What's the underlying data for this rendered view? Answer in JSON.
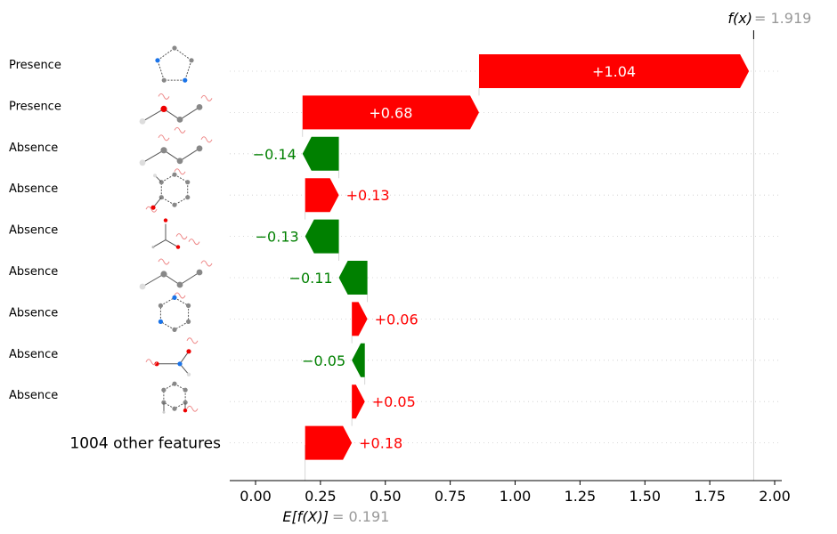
{
  "chart_data": {
    "type": "waterfall",
    "base_value": 0.191,
    "final_value": 1.919,
    "base_label": "E[f(X)]",
    "base_value_text": "= 0.191",
    "final_label": "f(x)",
    "final_value_text": "= 1.919",
    "xlim": [
      -0.1,
      2.03
    ],
    "x_ticks": [
      0,
      0.25,
      0.5,
      0.75,
      1.0,
      1.25,
      1.5,
      1.75,
      2.0
    ],
    "x_tick_labels": [
      "0.00",
      "0.25",
      "0.50",
      "0.75",
      "1.00",
      "1.25",
      "1.50",
      "1.75",
      "2.00"
    ],
    "colors": {
      "positive": "#ff0000",
      "negative": "#008000",
      "text_gray": "#999999"
    },
    "features": [
      {
        "label": "Presence",
        "value": 1.04,
        "value_label": "+1.04",
        "structure": "cyclopentane-ring"
      },
      {
        "label": "Presence",
        "value": 0.68,
        "value_label": "+0.68",
        "structure": "branched-fragment"
      },
      {
        "label": "Absence",
        "value": -0.14,
        "value_label": "−0.14",
        "structure": "branched-fragment"
      },
      {
        "label": "Absence",
        "value": 0.13,
        "value_label": "+0.13",
        "structure": "benzene-ring"
      },
      {
        "label": "Absence",
        "value": -0.13,
        "value_label": "−0.13",
        "structure": "carbonyl-fragment"
      },
      {
        "label": "Absence",
        "value": -0.11,
        "value_label": "−0.11",
        "structure": "branched-fragment"
      },
      {
        "label": "Absence",
        "value": 0.06,
        "value_label": "+0.06",
        "structure": "pyridine-ring"
      },
      {
        "label": "Absence",
        "value": -0.05,
        "value_label": "−0.05",
        "structure": "amine-fragment"
      },
      {
        "label": "Absence",
        "value": 0.05,
        "value_label": "+0.05",
        "structure": "aromatic-ring-fragment"
      },
      {
        "label": "1004 other features",
        "value": 0.18,
        "value_label": "+0.18",
        "structure": ""
      }
    ]
  }
}
